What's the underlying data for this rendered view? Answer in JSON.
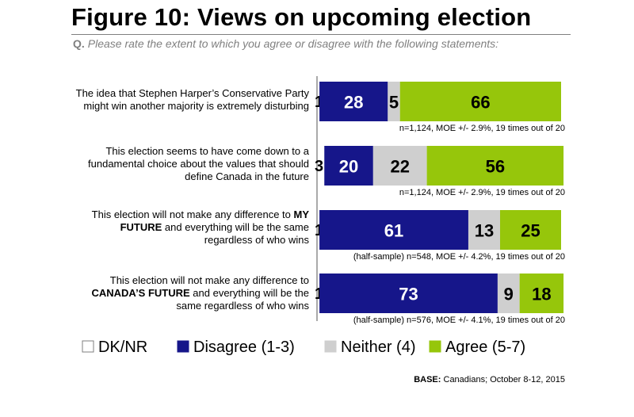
{
  "title": "Figure 10: Views on upcoming election",
  "question": {
    "prefix": "Q.",
    "text": "Please rate the extent to which you agree or disagree with the following statements:"
  },
  "rows": [
    {
      "label_lines": [
        [
          {
            "t": "The idea that Stephen Harper’s Conservative Party",
            "b": false
          }
        ],
        [
          {
            "t": "might win another majority is extremely disturbing",
            "b": false
          }
        ]
      ],
      "note": "n=1,124, MOE +/- 2.9%, 19 times out of 20"
    },
    {
      "label_lines": [
        [
          {
            "t": "This election seems to have come down to a",
            "b": false
          }
        ],
        [
          {
            "t": "fundamental choice about the values that should",
            "b": false
          }
        ],
        [
          {
            "t": "define Canada in the future",
            "b": false
          }
        ]
      ],
      "note": "n=1,124, MOE +/- 2.9%, 19 times out of 20"
    },
    {
      "label_lines": [
        [
          {
            "t": "This election will not make any difference to ",
            "b": false
          },
          {
            "t": "MY",
            "b": true
          }
        ],
        [
          {
            "t": "FUTURE",
            "b": true
          },
          {
            "t": " and everything will be the same",
            "b": false
          }
        ],
        [
          {
            "t": "regardless of who wins",
            "b": false
          }
        ]
      ],
      "note": "(half-sample) n=548, MOE +/- 4.2%, 19 times out of 20"
    },
    {
      "label_lines": [
        [
          {
            "t": "This election will not make any difference to",
            "b": false
          }
        ],
        [
          {
            "t": "CANADA’S FUTURE",
            "b": true
          },
          {
            "t": " and everything will be the",
            "b": false
          }
        ],
        [
          {
            "t": "same regardless of who wins",
            "b": false
          }
        ]
      ],
      "note": "(half-sample) n=576, MOE +/- 4.1%, 19 times out of 20"
    }
  ],
  "base": {
    "prefix": "BASE:",
    "text": "Canadians; October 8-12, 2015"
  },
  "chart_data": {
    "type": "bar",
    "orientation": "horizontal",
    "stacked": true,
    "xlim": [
      0,
      100
    ],
    "categories": [
      "The idea that Stephen Harper’s Conservative Party might win another majority is extremely disturbing",
      "This election seems to have come down to a fundamental choice about the values that should define Canada in the future",
      "This election will not make any difference to MY FUTURE and everything will be the same regardless of who wins",
      "This election will not make any difference to CANADA’S FUTURE and everything will be the same regardless of who wins"
    ],
    "series": [
      {
        "name": "DK/NR",
        "color": "#ffffff",
        "label_color": "#000000",
        "values": [
          1,
          3,
          1,
          1
        ]
      },
      {
        "name": "Disagree (1-3)",
        "color": "#16168a",
        "label_color": "#ffffff",
        "values": [
          28,
          20,
          61,
          73
        ]
      },
      {
        "name": "Neither (4)",
        "color": "#cfcfcf",
        "label_color": "#000000",
        "values": [
          5,
          22,
          13,
          9
        ]
      },
      {
        "name": "Agree (5-7)",
        "color": "#96c60b",
        "label_color": "#000000",
        "values": [
          66,
          56,
          25,
          18
        ]
      }
    ],
    "legend_position": "bottom",
    "grid": false
  }
}
